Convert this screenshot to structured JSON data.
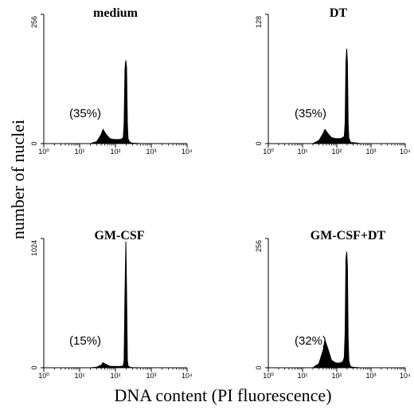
{
  "figure": {
    "y_axis_label": "number of nuclei",
    "x_axis_label": "DNA content (PI fluorescence)"
  },
  "chart_data": [
    {
      "type": "area",
      "title": "medium",
      "annotation": "(35%)",
      "xscale": "log",
      "xlim": [
        1,
        10000
      ],
      "x_tick_labels": [
        "10⁰",
        "10¹",
        "10²",
        "10³",
        "10⁴"
      ],
      "ylim": [
        0,
        256
      ],
      "y_tick_labels": [
        "0",
        "256"
      ],
      "x": [
        1,
        20,
        30,
        40,
        45,
        55,
        70,
        90,
        110,
        130,
        150,
        165,
        175,
        185,
        195,
        205,
        215,
        225,
        240,
        260,
        300,
        500,
        1000,
        10000
      ],
      "y": [
        0,
        0,
        4,
        18,
        28,
        18,
        10,
        8,
        8,
        8,
        9,
        12,
        40,
        150,
        165,
        150,
        40,
        10,
        5,
        2,
        1,
        0,
        0,
        0
      ]
    },
    {
      "type": "area",
      "title": "DT",
      "annotation": "(35%)",
      "xscale": "log",
      "xlim": [
        1,
        10000
      ],
      "x_tick_labels": [
        "10⁰",
        "10¹",
        "10²",
        "10³",
        "10⁴"
      ],
      "ylim": [
        0,
        128
      ],
      "y_tick_labels": [
        "0",
        "128"
      ],
      "x": [
        1,
        20,
        30,
        40,
        45,
        55,
        70,
        90,
        110,
        130,
        150,
        165,
        175,
        185,
        195,
        205,
        215,
        225,
        240,
        260,
        300,
        500,
        1000,
        10000
      ],
      "y": [
        0,
        0,
        3,
        10,
        14,
        10,
        6,
        5,
        5,
        5,
        6,
        7,
        20,
        80,
        94,
        80,
        20,
        6,
        3,
        1,
        1,
        0,
        0,
        0
      ]
    },
    {
      "type": "area",
      "title": "GM-CSF",
      "annotation": "(15%)",
      "xscale": "log",
      "xlim": [
        1,
        10000
      ],
      "x_tick_labels": [
        "10⁰",
        "10¹",
        "10²",
        "10³",
        "10⁴"
      ],
      "ylim": [
        0,
        1024
      ],
      "y_tick_labels": [
        "0",
        "1024"
      ],
      "x": [
        1,
        20,
        30,
        40,
        45,
        55,
        70,
        90,
        110,
        130,
        150,
        165,
        175,
        185,
        195,
        205,
        215,
        225,
        240,
        260,
        300,
        500,
        1000,
        10000
      ],
      "y": [
        0,
        0,
        5,
        20,
        40,
        25,
        12,
        10,
        10,
        10,
        12,
        15,
        60,
        600,
        1000,
        600,
        60,
        15,
        8,
        3,
        1,
        0,
        0,
        0
      ]
    },
    {
      "type": "area",
      "title": "GM-CSF+DT",
      "annotation": "(32%)",
      "xscale": "log",
      "xlim": [
        1,
        10000
      ],
      "x_tick_labels": [
        "10⁰",
        "10¹",
        "10²",
        "10³",
        "10⁴"
      ],
      "ylim": [
        0,
        256
      ],
      "y_tick_labels": [
        "0",
        "256"
      ],
      "x": [
        1,
        20,
        30,
        40,
        45,
        55,
        70,
        90,
        110,
        130,
        150,
        165,
        175,
        185,
        195,
        205,
        215,
        225,
        240,
        260,
        300,
        500,
        1000,
        10000
      ],
      "y": [
        0,
        0,
        8,
        35,
        55,
        38,
        15,
        10,
        9,
        10,
        12,
        20,
        70,
        215,
        230,
        200,
        60,
        15,
        6,
        2,
        1,
        0,
        0,
        0
      ]
    }
  ]
}
